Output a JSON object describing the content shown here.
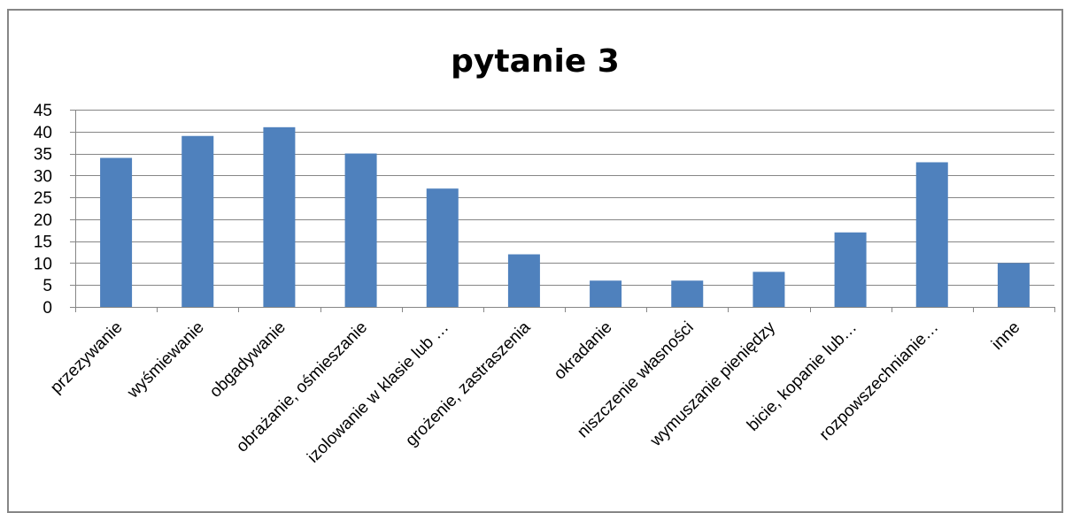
{
  "chart_data": {
    "type": "bar",
    "title": "pytanie 3",
    "xlabel": "",
    "ylabel": "",
    "ylim": [
      0,
      45
    ],
    "yticks": [
      0,
      5,
      10,
      15,
      20,
      25,
      30,
      35,
      40,
      45
    ],
    "grid": true,
    "legend": "none",
    "bar_color": "#4f81bd",
    "categories": [
      "przezywanie",
      "wyśmiewanie",
      "obgadywanie",
      "obrażanie, ośmieszanie",
      "izolowanie w klasie lub …",
      "grożenie, zastraszenia",
      "okradanie",
      "niszczenie własności",
      "wymuszanie pieniędzy",
      "bicie, kopanie lub…",
      "rozpowszechnianie…",
      "inne"
    ],
    "values": [
      34,
      39,
      41,
      35,
      27,
      12,
      6,
      6,
      8,
      17,
      33,
      10
    ]
  }
}
